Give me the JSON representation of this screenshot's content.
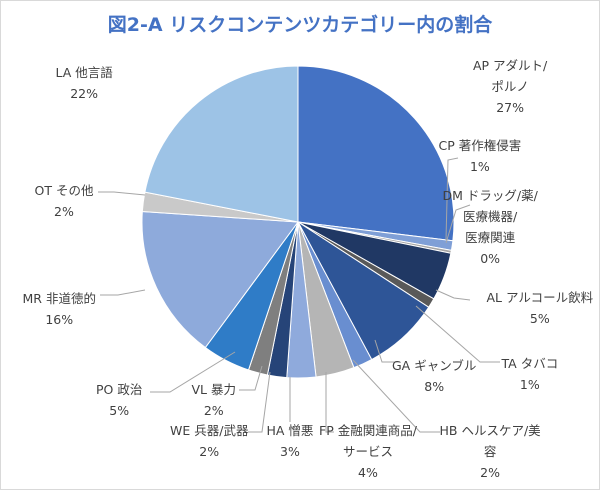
{
  "chart_data": {
    "type": "pie",
    "title": "図2-A リスクコンテンツカテゴリー内の割合",
    "slices": [
      {
        "name": "AP アダルト/ポルノ",
        "label_lines": [
          "AP アダルト/",
          "ポルノ"
        ],
        "value": 27,
        "value_label": "27%",
        "color": "#4472c4"
      },
      {
        "name": "CP 著作権侵害",
        "label_lines": [
          "CP 著作権侵害"
        ],
        "value": 1,
        "value_label": "1%",
        "color": "#7f9fd6"
      },
      {
        "name": "DM ドラッグ/薬/医療機器/医療関連",
        "label_lines": [
          "DM ドラッグ/薬/",
          "医療機器/",
          "医療関連"
        ],
        "value": 0.3,
        "value_label": "0%",
        "color": "#a5a5a5"
      },
      {
        "name": "AL アルコール飲料",
        "label_lines": [
          "AL アルコール飲料"
        ],
        "value": 5,
        "value_label": "5%",
        "color": "#203864"
      },
      {
        "name": "TA タバコ",
        "label_lines": [
          "TA タバコ"
        ],
        "value": 1,
        "value_label": "1%",
        "color": "#595959"
      },
      {
        "name": "GA ギャンブル",
        "label_lines": [
          "GA ギャンブル"
        ],
        "value": 8,
        "value_label": "8%",
        "color": "#2e5597"
      },
      {
        "name": "HB ヘルスケア/美容",
        "label_lines": [
          "HB ヘルスケア/美",
          "容"
        ],
        "value": 2,
        "value_label": "2%",
        "color": "#698ed0"
      },
      {
        "name": "FP 金融関連商品/サービス",
        "label_lines": [
          "FP 金融関連商品/",
          "サービス"
        ],
        "value": 4,
        "value_label": "4%",
        "color": "#b5b5b5"
      },
      {
        "name": "HA 憎悪",
        "label_lines": [
          "HA 憎悪"
        ],
        "value": 3,
        "value_label": "3%",
        "color": "#8faadc"
      },
      {
        "name": "WE 兵器/武器",
        "label_lines": [
          "WE 兵器/武器"
        ],
        "value": 2,
        "value_label": "2%",
        "color": "#264478"
      },
      {
        "name": "VL 暴力",
        "label_lines": [
          "VL 暴力"
        ],
        "value": 2,
        "value_label": "2%",
        "color": "#7f7f7f"
      },
      {
        "name": "PO 政治",
        "label_lines": [
          "PO 政治"
        ],
        "value": 5,
        "value_label": "5%",
        "color": "#2f7cc7"
      },
      {
        "name": "MR 非道徳的",
        "label_lines": [
          "MR 非道徳的"
        ],
        "value": 16,
        "value_label": "16%",
        "color": "#8eaadb"
      },
      {
        "name": "OT その他",
        "label_lines": [
          "OT その他"
        ],
        "value": 2,
        "value_label": "2%",
        "color": "#c9c9c9"
      },
      {
        "name": "LA 他言語",
        "label_lines": [
          "LA 他言語"
        ],
        "value": 22,
        "value_label": "22%",
        "color": "#9dc3e6"
      }
    ],
    "legend": "none"
  }
}
